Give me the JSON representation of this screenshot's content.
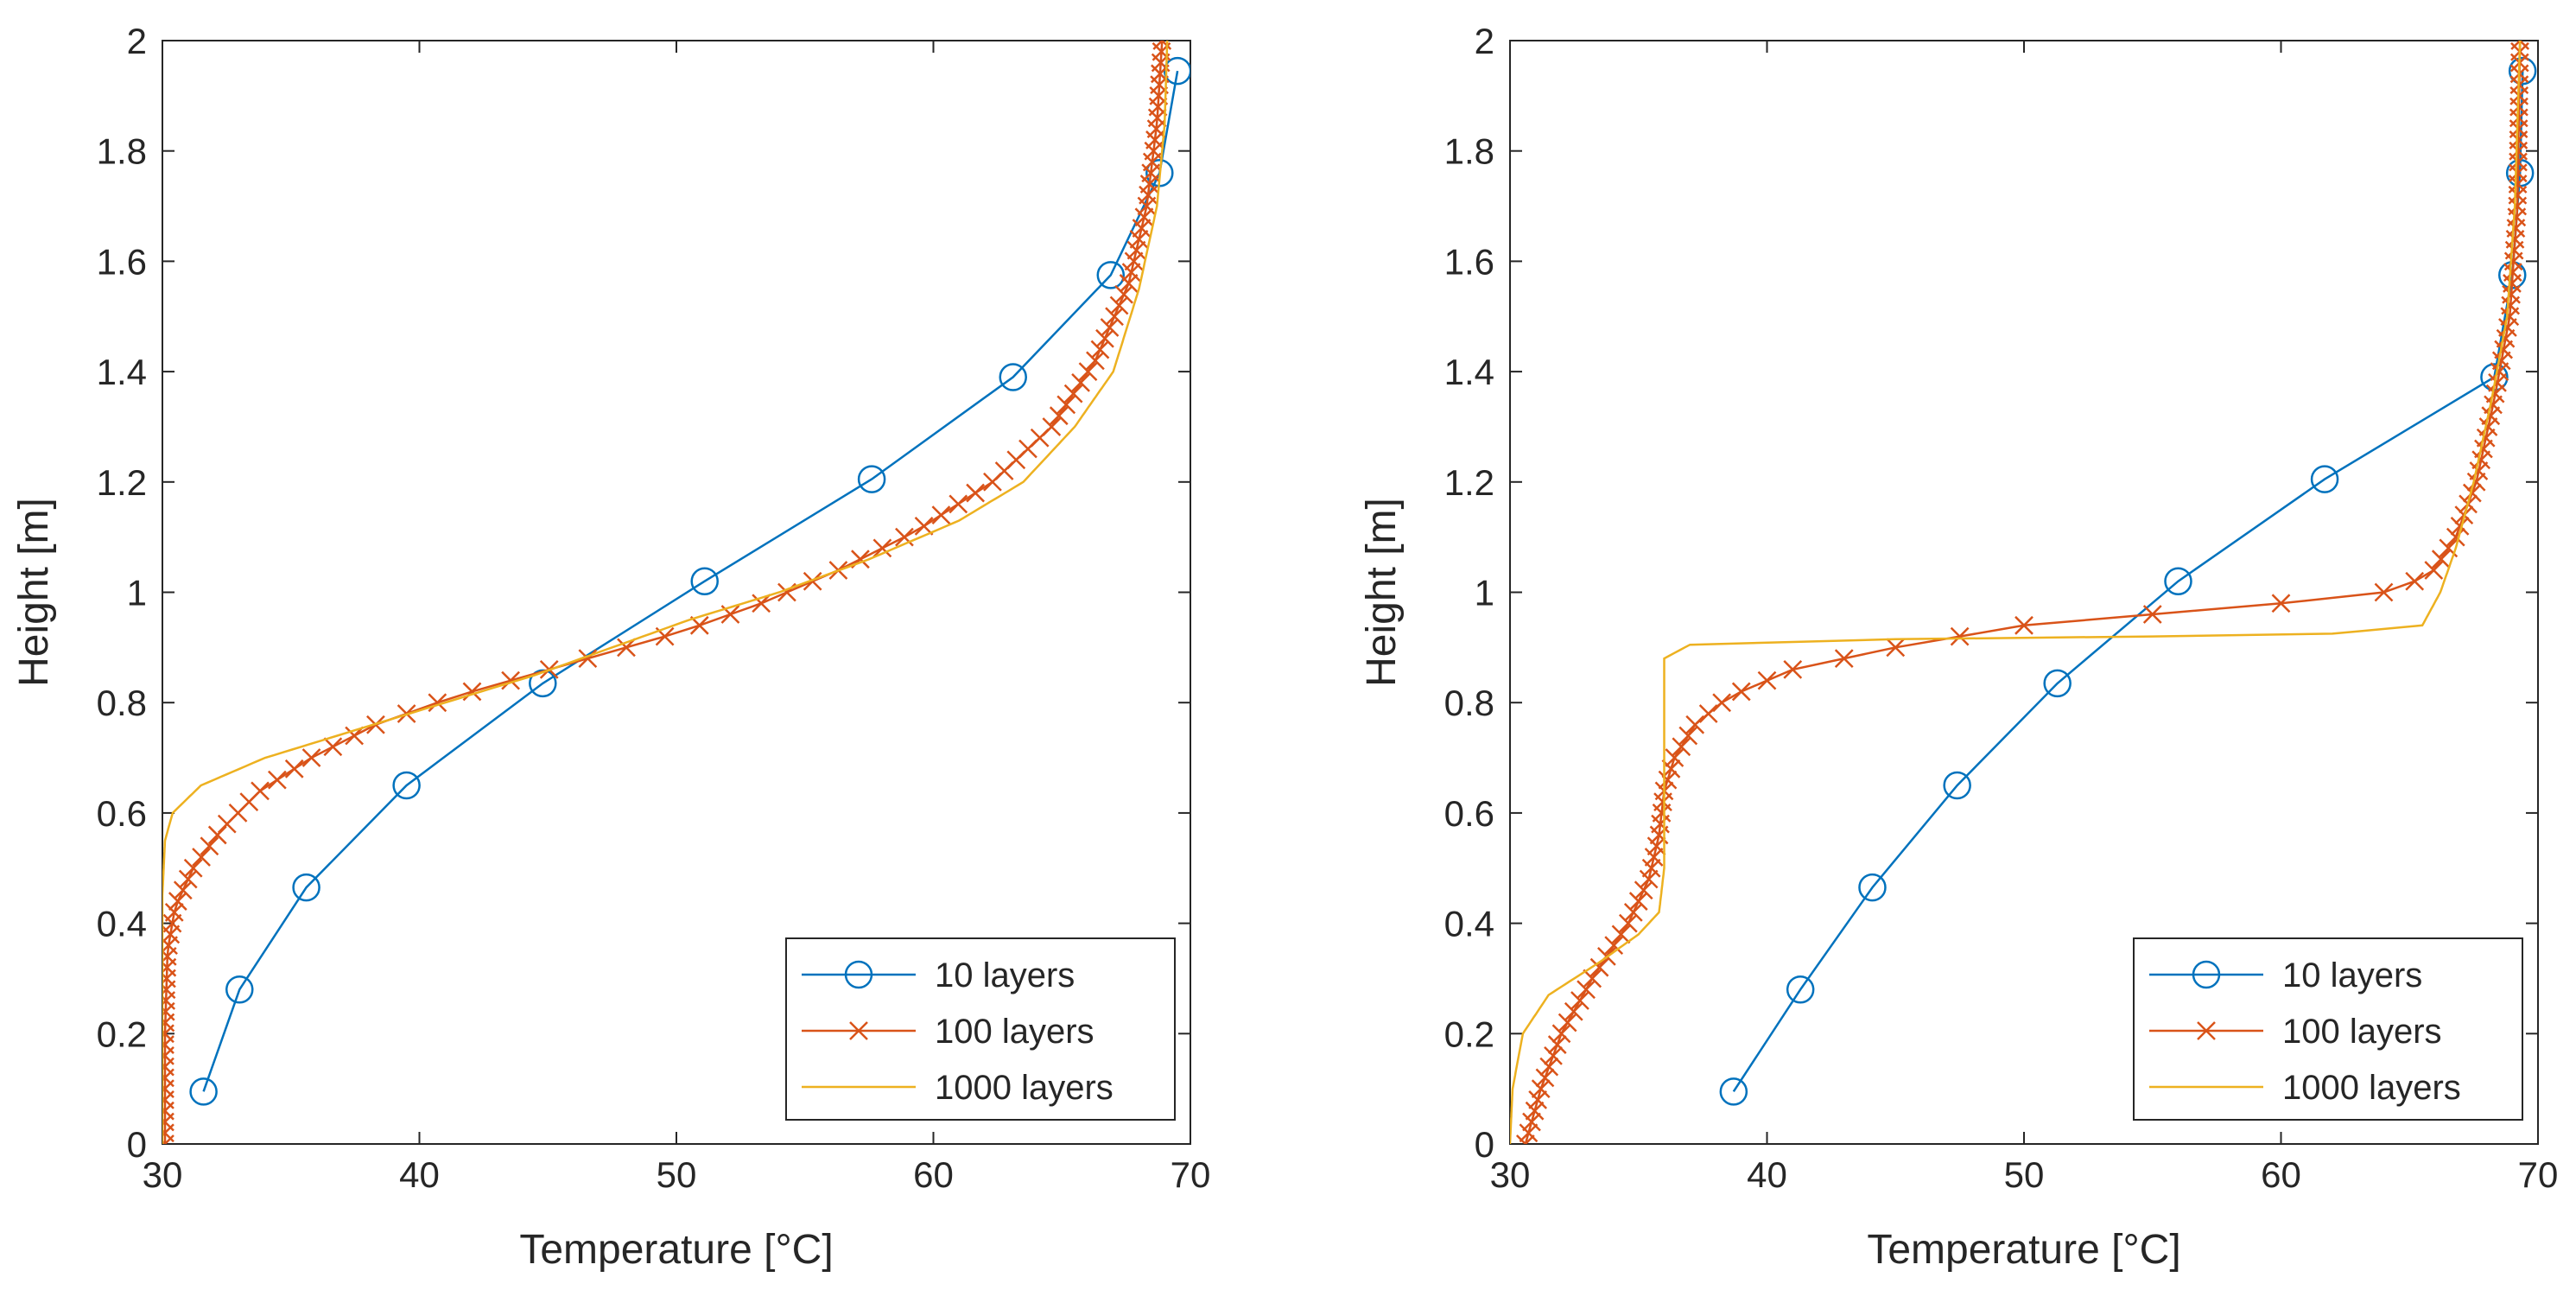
{
  "colors": {
    "series_10": "#0072BD",
    "series_100": "#D95319",
    "series_1000": "#EDB120",
    "axis": "#262626"
  },
  "chart_data": [
    {
      "type": "line",
      "title": "",
      "xlabel": "Temperature [°C]",
      "ylabel": "Height [m]",
      "xlim": [
        30,
        70
      ],
      "ylim": [
        0,
        2
      ],
      "xticks": [
        "30",
        "40",
        "50",
        "60",
        "70"
      ],
      "yticks": [
        "0",
        "0.2",
        "0.4",
        "0.6",
        "0.8",
        "1",
        "1.2",
        "1.4",
        "1.6",
        "1.8",
        "2"
      ],
      "grid": false,
      "legend": "bottom-right",
      "series": [
        {
          "name": "10 layers",
          "marker": "circle",
          "points": [
            [
              31.6,
              0.095
            ],
            [
              33.0,
              0.28
            ],
            [
              35.6,
              0.465
            ],
            [
              39.5,
              0.65
            ],
            [
              44.8,
              0.835
            ],
            [
              51.1,
              1.02
            ],
            [
              57.6,
              1.205
            ],
            [
              63.1,
              1.39
            ],
            [
              66.9,
              1.575
            ],
            [
              68.8,
              1.76
            ],
            [
              69.5,
              1.945
            ]
          ]
        },
        {
          "name": "100 layers",
          "marker": "x",
          "profile": [
            [
              30.1,
              0.0
            ],
            [
              30.1,
              0.2
            ],
            [
              30.2,
              0.35
            ],
            [
              30.5,
              0.43
            ],
            [
              31.2,
              0.5
            ],
            [
              32.3,
              0.57
            ],
            [
              33.8,
              0.64
            ],
            [
              35.8,
              0.7
            ],
            [
              38.3,
              0.76
            ],
            [
              41.3,
              0.81
            ],
            [
              44.3,
              0.85
            ],
            [
              47.3,
              0.89
            ],
            [
              50.3,
              0.93
            ],
            [
              53.3,
              0.98
            ],
            [
              56.3,
              1.04
            ],
            [
              59.3,
              1.11
            ],
            [
              62.3,
              1.2
            ],
            [
              64.6,
              1.3
            ],
            [
              66.3,
              1.42
            ],
            [
              67.6,
              1.56
            ],
            [
              68.3,
              1.7
            ],
            [
              68.7,
              1.85
            ],
            [
              68.9,
              2.0
            ]
          ]
        },
        {
          "name": "1000 layers",
          "marker": "none",
          "profile": [
            [
              30.0,
              0.0
            ],
            [
              30.0,
              0.45
            ],
            [
              30.1,
              0.55
            ],
            [
              30.4,
              0.6
            ],
            [
              31.5,
              0.65
            ],
            [
              34.0,
              0.7
            ],
            [
              37.5,
              0.75
            ],
            [
              41.0,
              0.8
            ],
            [
              44.5,
              0.85
            ],
            [
              47.5,
              0.9
            ],
            [
              50.5,
              0.95
            ],
            [
              54.0,
              1.0
            ],
            [
              57.5,
              1.06
            ],
            [
              61.0,
              1.13
            ],
            [
              63.5,
              1.2
            ],
            [
              65.5,
              1.3
            ],
            [
              67.0,
              1.4
            ],
            [
              68.0,
              1.55
            ],
            [
              68.7,
              1.7
            ],
            [
              69.0,
              1.85
            ],
            [
              69.1,
              2.0
            ]
          ]
        }
      ]
    },
    {
      "type": "line",
      "title": "",
      "xlabel": "Temperature [°C]",
      "ylabel": "Height [m]",
      "xlim": [
        30,
        70
      ],
      "ylim": [
        0,
        2
      ],
      "xticks": [
        "30",
        "40",
        "50",
        "60",
        "70"
      ],
      "yticks": [
        "0",
        "0.2",
        "0.4",
        "0.6",
        "0.8",
        "1",
        "1.2",
        "1.4",
        "1.6",
        "1.8",
        "2"
      ],
      "grid": false,
      "legend": "bottom-right",
      "series": [
        {
          "name": "10 layers",
          "marker": "circle",
          "points": [
            [
              38.7,
              0.095
            ],
            [
              41.3,
              0.28
            ],
            [
              44.1,
              0.465
            ],
            [
              47.4,
              0.65
            ],
            [
              51.3,
              0.835
            ],
            [
              56.0,
              1.02
            ],
            [
              61.7,
              1.205
            ],
            [
              68.3,
              1.39
            ],
            [
              69.0,
              1.575
            ],
            [
              69.3,
              1.76
            ],
            [
              69.4,
              1.945
            ]
          ]
        },
        {
          "name": "100 layers",
          "marker": "x",
          "profile": [
            [
              30.6,
              0.0
            ],
            [
              31.2,
              0.1
            ],
            [
              32.0,
              0.2
            ],
            [
              33.2,
              0.3
            ],
            [
              34.6,
              0.4
            ],
            [
              35.4,
              0.48
            ],
            [
              35.8,
              0.56
            ],
            [
              36.0,
              0.64
            ],
            [
              36.4,
              0.7
            ],
            [
              37.2,
              0.76
            ],
            [
              38.5,
              0.81
            ],
            [
              41.0,
              0.86
            ],
            [
              45.0,
              0.9
            ],
            [
              50.0,
              0.94
            ],
            [
              55.0,
              0.96
            ],
            [
              60.0,
              0.98
            ],
            [
              64.0,
              1.0
            ],
            [
              65.8,
              1.03
            ],
            [
              66.8,
              1.1
            ],
            [
              67.6,
              1.2
            ],
            [
              68.3,
              1.35
            ],
            [
              68.9,
              1.5
            ],
            [
              69.2,
              1.7
            ],
            [
              69.3,
              2.0
            ]
          ]
        },
        {
          "name": "1000 layers",
          "marker": "none",
          "profile": [
            [
              30.0,
              0.0
            ],
            [
              30.1,
              0.1
            ],
            [
              30.5,
              0.2
            ],
            [
              31.5,
              0.27
            ],
            [
              33.5,
              0.33
            ],
            [
              35.0,
              0.38
            ],
            [
              35.8,
              0.42
            ],
            [
              36.0,
              0.5
            ],
            [
              36.0,
              0.88
            ],
            [
              37.0,
              0.905
            ],
            [
              45.0,
              0.915
            ],
            [
              55.0,
              0.92
            ],
            [
              62.0,
              0.925
            ],
            [
              65.5,
              0.94
            ],
            [
              66.2,
              1.0
            ],
            [
              66.8,
              1.08
            ],
            [
              67.5,
              1.2
            ],
            [
              68.2,
              1.35
            ],
            [
              68.8,
              1.5
            ],
            [
              69.1,
              1.7
            ],
            [
              69.3,
              2.0
            ]
          ]
        }
      ]
    }
  ]
}
